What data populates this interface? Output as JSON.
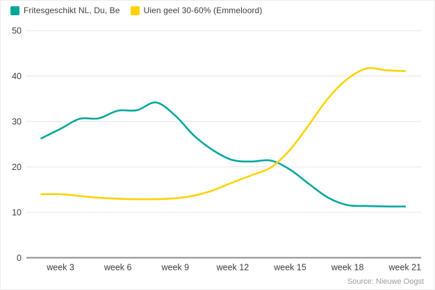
{
  "legend": [
    {
      "label": "Fritesgeschikt NL, Du, Be",
      "color": "#00A79B"
    },
    {
      "label": "Uien geel 30-60% (Emmeloord)",
      "color": "#FFD200"
    }
  ],
  "source": "Source: Nieuwe Oogst",
  "colors": {
    "series_teal": "#00A79B",
    "series_yellow": "#FFD200",
    "grid": "#e4e4e4",
    "axis": "#8c8c8c",
    "tick_text": "#3c3c44",
    "source_text": "#9b9b9b",
    "background": "#ffffff"
  },
  "chart_data": {
    "type": "line",
    "x": [
      2,
      3,
      4,
      5,
      6,
      7,
      8,
      9,
      10,
      11,
      12,
      13,
      14,
      15,
      16,
      17,
      18,
      19,
      20,
      21
    ],
    "x_unit": "week",
    "series": [
      {
        "name": "Fritesgeschikt NL, Du, Be",
        "color": "#00A79B",
        "values": [
          26.3,
          28.4,
          30.6,
          30.7,
          32.4,
          32.5,
          34.2,
          31.3,
          26.8,
          23.6,
          21.5,
          21.2,
          21.4,
          19.4,
          16.2,
          13.2,
          11.6,
          11.4,
          11.3,
          11.3
        ]
      },
      {
        "name": "Uien geel 30-60% (Emmeloord)",
        "color": "#FFD200",
        "values": [
          14.0,
          14.0,
          13.6,
          13.2,
          13.0,
          12.9,
          12.9,
          13.1,
          13.7,
          14.9,
          16.6,
          18.2,
          19.9,
          23.8,
          29.4,
          35.2,
          39.4,
          41.7,
          41.3,
          41.1
        ]
      }
    ],
    "xticks": [
      {
        "week": 3,
        "label": "week 3"
      },
      {
        "week": 6,
        "label": "week 6"
      },
      {
        "week": 9,
        "label": "week 9"
      },
      {
        "week": 12,
        "label": "week 12"
      },
      {
        "week": 15,
        "label": "week 15"
      },
      {
        "week": 18,
        "label": "week 18"
      },
      {
        "week": 21,
        "label": "week 21"
      }
    ],
    "yticks": [
      0,
      10,
      20,
      30,
      40,
      50
    ],
    "ylim": [
      0,
      50
    ],
    "grid": true,
    "legend_position": "top-left",
    "title": "",
    "xlabel": "",
    "ylabel": ""
  }
}
